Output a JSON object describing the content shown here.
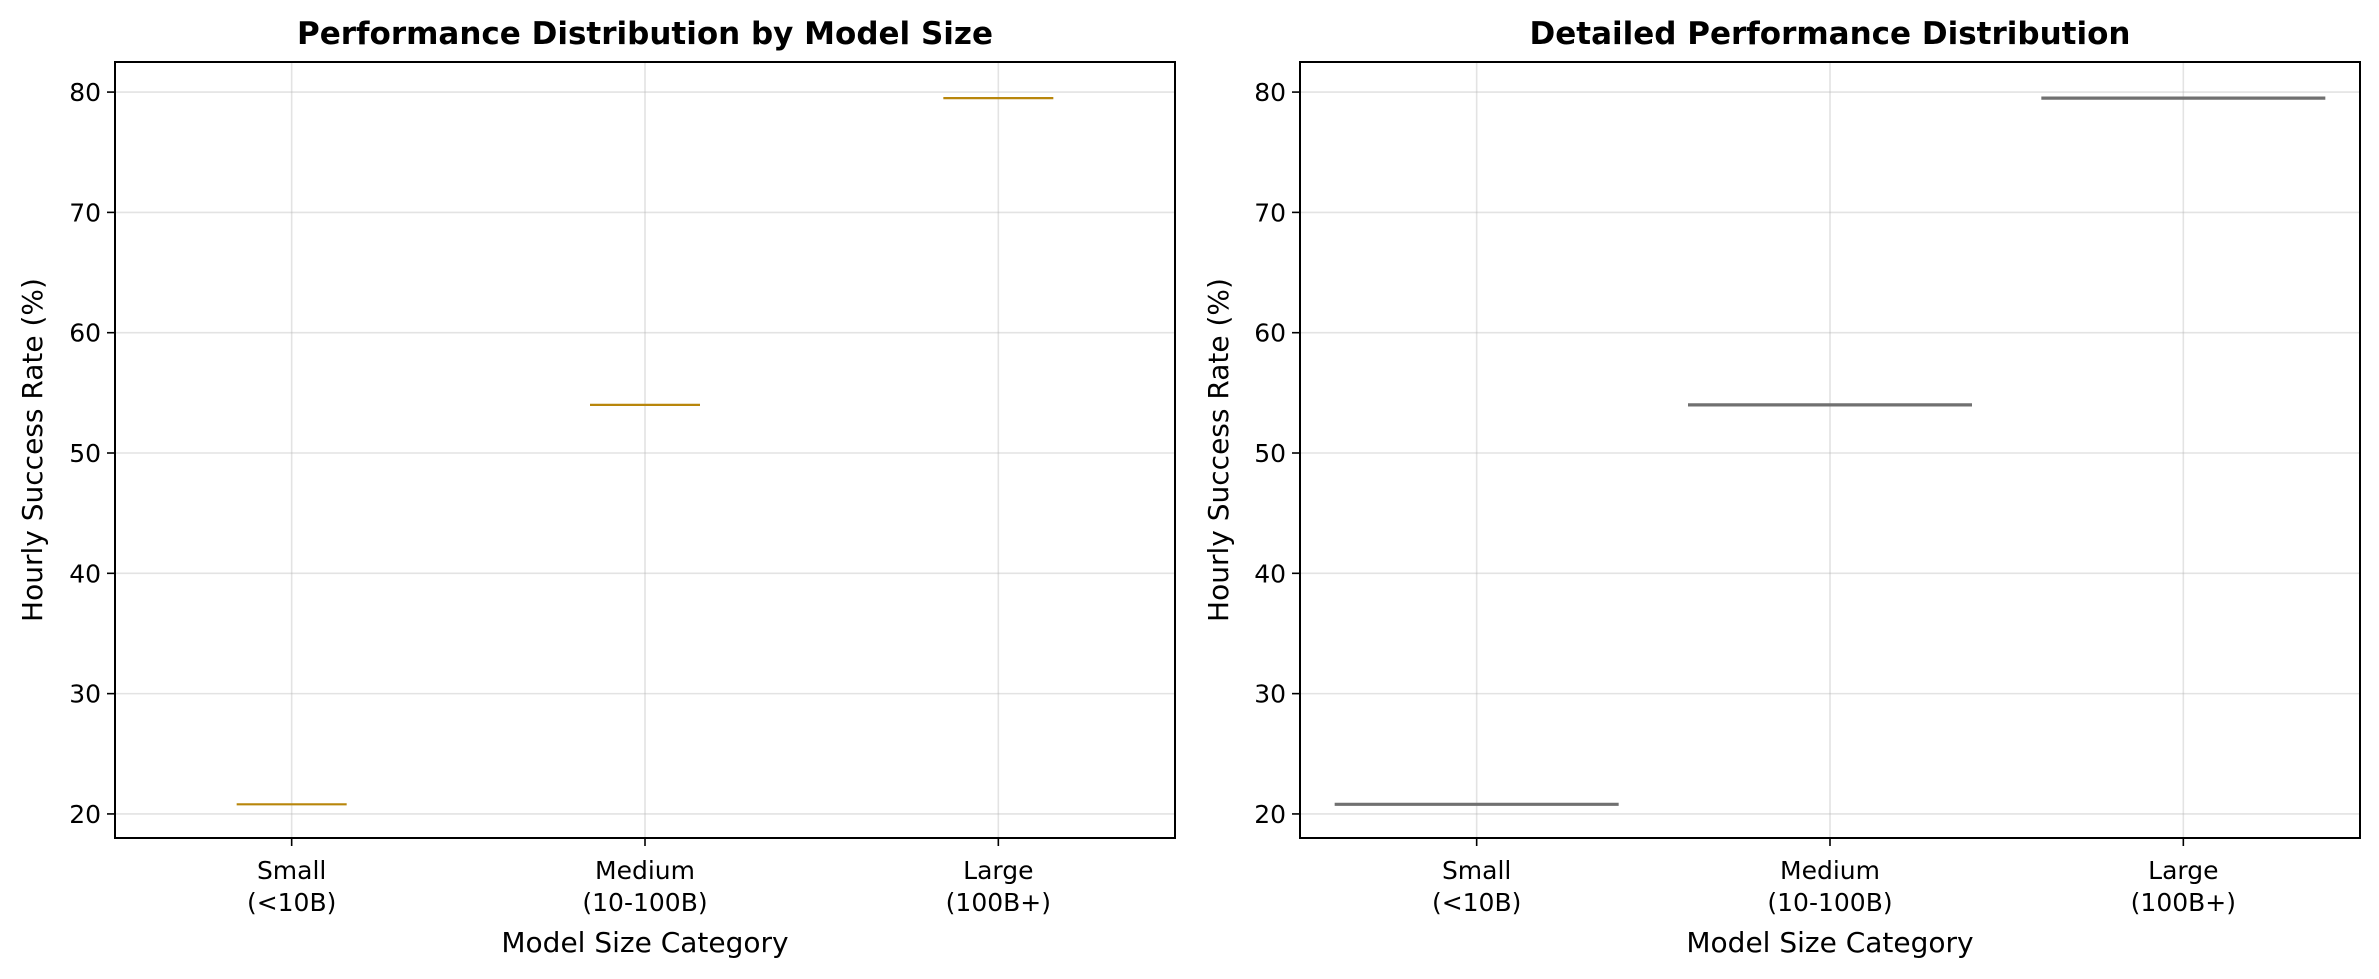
{
  "chart_data": [
    {
      "type": "box",
      "title": "Performance Distribution by Model Size",
      "xlabel": "Model Size Category",
      "ylabel": "Hourly Success Rate (%)",
      "categories": [
        [
          "Small",
          "(<10B)"
        ],
        [
          "Medium",
          "(10-100B)"
        ],
        [
          "Large",
          "(100B+)"
        ]
      ],
      "values": [
        20.8,
        54.0,
        79.5
      ],
      "ylim": [
        18,
        82.5
      ],
      "yticks": [
        20,
        30,
        40,
        50,
        60,
        70,
        80
      ],
      "grid": true,
      "color": "#b8860b"
    },
    {
      "type": "violin",
      "title": "Detailed Performance Distribution",
      "xlabel": "Model Size Category",
      "ylabel": "Hourly Success Rate (%)",
      "categories": [
        [
          "Small",
          "(<10B)"
        ],
        [
          "Medium",
          "(10-100B)"
        ],
        [
          "Large",
          "(100B+)"
        ]
      ],
      "values": [
        20.8,
        54.0,
        79.5
      ],
      "ylim": [
        18,
        82.5
      ],
      "yticks": [
        20,
        30,
        40,
        50,
        60,
        70,
        80
      ],
      "grid": true,
      "color": "#707070"
    }
  ]
}
